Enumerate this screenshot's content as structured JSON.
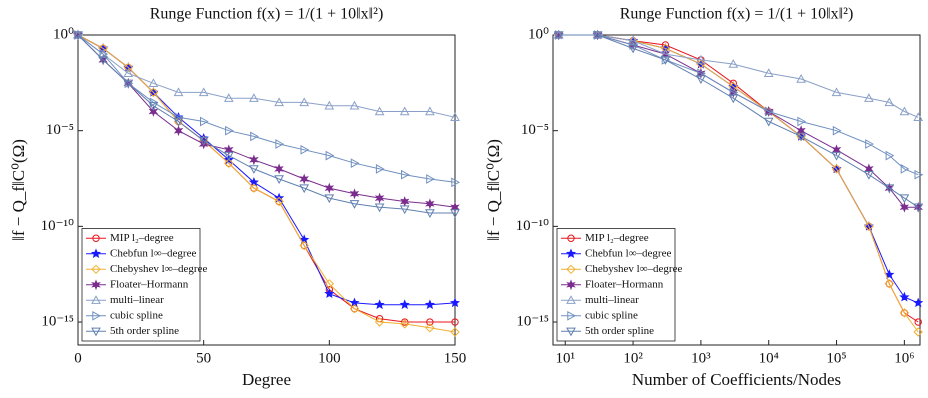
{
  "chart_data": [
    {
      "type": "line",
      "title": "Runge Function f(x) = 1/(1 + 10‖x‖²)",
      "xlabel": "Degree",
      "ylabel": "‖f − Q_f‖C⁰(Ω)",
      "x": [
        0,
        10,
        20,
        30,
        40,
        50,
        60,
        70,
        80,
        90,
        100,
        110,
        120,
        130,
        140,
        150
      ],
      "xlim": [
        0,
        150
      ],
      "xticks": [
        0,
        50,
        100,
        150
      ],
      "xscale": "linear",
      "ylim": [
        6.3e-17,
        1
      ],
      "yscale": "log",
      "yticks": [
        {
          "value": 1e-15,
          "label": "10⁻¹⁵"
        },
        {
          "value": 1e-10,
          "label": "10⁻¹⁰"
        },
        {
          "value": 1e-05,
          "label": "10⁻⁵"
        },
        {
          "value": 1,
          "label": "10⁰"
        }
      ],
      "legend": "lower left",
      "series": [
        {
          "name": "MIP l₂–degree",
          "color": "#e8141c",
          "marker": "circle",
          "values": [
            1,
            0.2,
            0.02,
            0.001,
            3e-05,
            3e-06,
            2e-07,
            1e-08,
            2e-09,
            1e-11,
            5e-14,
            5e-15,
            1.5e-15,
            1e-15,
            1e-15,
            1e-15
          ]
        },
        {
          "name": "Chebfun l∞–degree",
          "color": "#1a1aff",
          "marker": "star",
          "values": [
            1,
            0.2,
            0.02,
            0.001,
            5e-05,
            4e-06,
            3e-07,
            2e-08,
            3e-09,
            2e-11,
            3e-14,
            1e-14,
            8e-15,
            8e-15,
            8e-15,
            1e-14
          ]
        },
        {
          "name": "Chebyshev l∞–degree",
          "color": "#f0b030",
          "marker": "diamond",
          "values": [
            1,
            0.2,
            0.02,
            0.001,
            3e-05,
            3e-06,
            2e-07,
            1e-08,
            2e-09,
            1e-11,
            1e-13,
            5e-15,
            1e-15,
            8e-16,
            5e-16,
            3e-16
          ]
        },
        {
          "name": "Floater–Hormann",
          "color": "#7b2d8e",
          "marker": "hexagram",
          "values": [
            1,
            0.05,
            0.003,
            0.0001,
            1e-05,
            2e-06,
            1e-06,
            3e-07,
            1e-07,
            3e-08,
            1e-08,
            5e-09,
            3e-09,
            2e-09,
            1.5e-09,
            1e-09
          ]
        },
        {
          "name": "multi–linear",
          "color": "#8aa0c8",
          "marker": "triangle-up",
          "values": [
            1,
            0.1,
            0.01,
            0.003,
            0.001,
            0.001,
            0.0005,
            0.0005,
            0.0003,
            0.0003,
            0.0002,
            0.0002,
            0.0001,
            0.0001,
            0.0001,
            5e-05
          ]
        },
        {
          "name": "cubic spline",
          "color": "#7090c0",
          "marker": "triangle-right",
          "values": [
            1,
            0.1,
            0.003,
            0.0003,
            5e-05,
            3e-05,
            1e-05,
            5e-06,
            2e-06,
            1e-06,
            5e-07,
            2e-07,
            1e-07,
            5e-08,
            3e-08,
            2e-08
          ]
        },
        {
          "name": "5th order spline",
          "color": "#6080b0",
          "marker": "triangle-down",
          "values": [
            1,
            0.05,
            0.003,
            0.0002,
            3e-05,
            3e-06,
            5e-07,
            1e-07,
            3e-08,
            1e-08,
            3e-09,
            1.5e-09,
            1e-09,
            8e-10,
            5e-10,
            5e-10
          ]
        }
      ]
    },
    {
      "type": "line",
      "title": "Runge Function f(x) = 1/(1 + 10‖x‖²)",
      "xlabel": "Number of Coefficients/Nodes",
      "ylabel": "‖f − Q_f‖C⁰(Ω)",
      "x": [
        8,
        30,
        100,
        300,
        1000,
        3000,
        10000,
        30000,
        100000,
        300000,
        600000,
        1000000,
        1600000
      ],
      "xlim": [
        6.6,
        1700000
      ],
      "xscale": "log",
      "xticks": [
        {
          "value": 10,
          "label": "10¹"
        },
        {
          "value": 100,
          "label": "10²"
        },
        {
          "value": 1000,
          "label": "10³"
        },
        {
          "value": 10000,
          "label": "10⁴"
        },
        {
          "value": 100000,
          "label": "10⁵"
        },
        {
          "value": 1000000,
          "label": "10⁶"
        }
      ],
      "ylim": [
        6.3e-17,
        1
      ],
      "yscale": "log",
      "yticks": [
        {
          "value": 1e-15,
          "label": "10⁻¹⁵"
        },
        {
          "value": 1e-10,
          "label": "10⁻¹⁰"
        },
        {
          "value": 1e-05,
          "label": "10⁻⁵"
        },
        {
          "value": 1,
          "label": "10⁰"
        }
      ],
      "legend": "lower left",
      "series": [
        {
          "name": "MIP l₂–degree",
          "color": "#e8141c",
          "marker": "circle",
          "values": [
            1,
            1,
            0.5,
            0.3,
            0.05,
            0.003,
            0.0001,
            5e-06,
            1e-07,
            1e-10,
            1e-13,
            3e-15,
            1e-15
          ]
        },
        {
          "name": "Chebfun l∞–degree",
          "color": "#1a1aff",
          "marker": "star",
          "values": [
            1,
            1,
            0.5,
            0.2,
            0.03,
            0.002,
            0.0001,
            5e-06,
            1e-07,
            1e-10,
            3e-13,
            2e-14,
            1e-14
          ]
        },
        {
          "name": "Chebyshev l∞–degree",
          "color": "#f0b030",
          "marker": "diamond",
          "values": [
            1,
            1,
            0.5,
            0.2,
            0.03,
            0.002,
            0.0001,
            5e-06,
            1e-07,
            1e-10,
            1e-13,
            3e-15,
            3e-16
          ]
        },
        {
          "name": "Floater–Hormann",
          "color": "#7b2d8e",
          "marker": "hexagram",
          "values": [
            1,
            1,
            0.3,
            0.1,
            0.01,
            0.001,
            0.0001,
            1e-05,
            1e-06,
            1e-07,
            1e-08,
            1e-09,
            1e-09
          ]
        },
        {
          "name": "multi–linear",
          "color": "#8aa0c8",
          "marker": "triangle-up",
          "values": [
            1,
            1,
            0.5,
            0.1,
            0.05,
            0.03,
            0.01,
            0.005,
            0.001,
            0.0005,
            0.0003,
            0.0001,
            5e-05
          ]
        },
        {
          "name": "cubic spline",
          "color": "#7090c0",
          "marker": "triangle-right",
          "values": [
            1,
            1,
            0.3,
            0.05,
            0.01,
            0.001,
            0.0001,
            3e-05,
            1e-05,
            2e-06,
            5e-07,
            1e-07,
            5e-08
          ]
        },
        {
          "name": "5th order spline",
          "color": "#6080b0",
          "marker": "triangle-down",
          "values": [
            1,
            1,
            0.2,
            0.05,
            0.005,
            0.0005,
            3e-05,
            5e-06,
            5e-07,
            5e-08,
            1e-08,
            3e-09,
            1e-09
          ]
        }
      ]
    }
  ]
}
